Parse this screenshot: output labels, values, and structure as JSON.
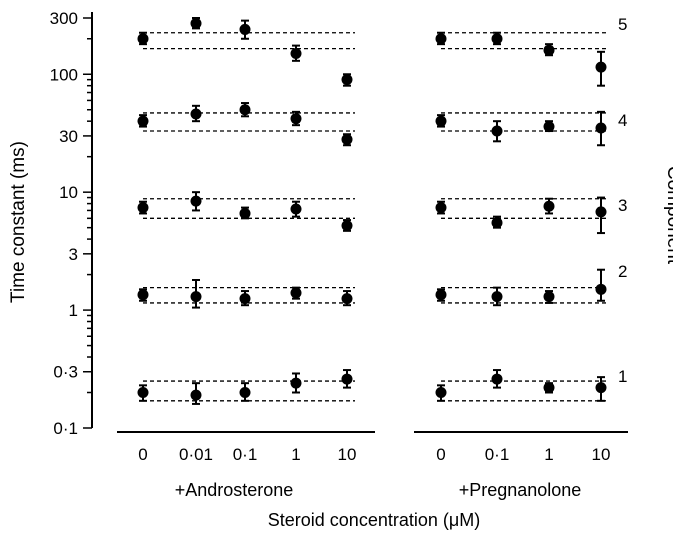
{
  "chart_data": {
    "type": "scatter",
    "ylabel": "Time constant (ms)",
    "xlabel": "Steroid concentration (μM)",
    "y_scale": "log",
    "ylim": [
      0.1,
      300
    ],
    "y_ticks": [
      {
        "value": 0.1,
        "label": "0·1"
      },
      {
        "value": 0.3,
        "label": "0·3"
      },
      {
        "value": 1,
        "label": "1"
      },
      {
        "value": 3,
        "label": "3"
      },
      {
        "value": 10,
        "label": "10"
      },
      {
        "value": 30,
        "label": "30"
      },
      {
        "value": 100,
        "label": "100"
      },
      {
        "value": 300,
        "label": "300"
      }
    ],
    "component_axis_label": "Component",
    "grid": false,
    "panels": [
      {
        "name": "+Androsterone",
        "categories": [
          "0",
          "0·01",
          "0·1",
          "1",
          "10"
        ],
        "components": [
          {
            "label": "1",
            "band": [
              0.17,
              0.25
            ],
            "points": [
              {
                "y": 0.2,
                "lo": 0.17,
                "hi": 0.23
              },
              {
                "y": 0.19,
                "lo": 0.16,
                "hi": 0.24
              },
              {
                "y": 0.2,
                "lo": 0.17,
                "hi": 0.24
              },
              {
                "y": 0.24,
                "lo": 0.2,
                "hi": 0.29
              },
              {
                "y": 0.26,
                "lo": 0.22,
                "hi": 0.31
              }
            ]
          },
          {
            "label": "2",
            "band": [
              1.15,
              1.55
            ],
            "points": [
              {
                "y": 1.35,
                "lo": 1.2,
                "hi": 1.5
              },
              {
                "y": 1.3,
                "lo": 1.05,
                "hi": 1.8
              },
              {
                "y": 1.25,
                "lo": 1.1,
                "hi": 1.45
              },
              {
                "y": 1.4,
                "lo": 1.25,
                "hi": 1.55
              },
              {
                "y": 1.25,
                "lo": 1.1,
                "hi": 1.45
              }
            ]
          },
          {
            "label": "3",
            "band": [
              6,
              8.8
            ],
            "points": [
              {
                "y": 7.4,
                "lo": 6.6,
                "hi": 8.3
              },
              {
                "y": 8.4,
                "lo": 7,
                "hi": 10
              },
              {
                "y": 6.6,
                "lo": 6,
                "hi": 7.4
              },
              {
                "y": 7.2,
                "lo": 6.2,
                "hi": 8.3
              },
              {
                "y": 5.2,
                "lo": 4.7,
                "hi": 5.8
              }
            ]
          },
          {
            "label": "4",
            "band": [
              33,
              47
            ],
            "points": [
              {
                "y": 40,
                "lo": 36,
                "hi": 45
              },
              {
                "y": 46,
                "lo": 40,
                "hi": 54
              },
              {
                "y": 50,
                "lo": 44,
                "hi": 57
              },
              {
                "y": 42,
                "lo": 37,
                "hi": 48
              },
              {
                "y": 28,
                "lo": 25,
                "hi": 31
              }
            ]
          },
          {
            "label": "5",
            "band": [
              165,
              225
            ],
            "points": [
              {
                "y": 200,
                "lo": 180,
                "hi": 225
              },
              {
                "y": 270,
                "lo": 245,
                "hi": 300
              },
              {
                "y": 240,
                "lo": 200,
                "hi": 285
              },
              {
                "y": 150,
                "lo": 130,
                "hi": 175
              },
              {
                "y": 90,
                "lo": 80,
                "hi": 100
              }
            ]
          }
        ]
      },
      {
        "name": "+Pregnanolone",
        "categories": [
          "0",
          "0·1",
          "1",
          "10"
        ],
        "components": [
          {
            "label": "1",
            "band": [
              0.17,
              0.25
            ],
            "points": [
              {
                "y": 0.2,
                "lo": 0.17,
                "hi": 0.23
              },
              {
                "y": 0.26,
                "lo": 0.22,
                "hi": 0.31
              },
              {
                "y": 0.22,
                "lo": 0.2,
                "hi": 0.24
              },
              {
                "y": 0.22,
                "lo": 0.17,
                "hi": 0.27
              }
            ]
          },
          {
            "label": "2",
            "band": [
              1.15,
              1.55
            ],
            "points": [
              {
                "y": 1.35,
                "lo": 1.2,
                "hi": 1.5
              },
              {
                "y": 1.3,
                "lo": 1.1,
                "hi": 1.55
              },
              {
                "y": 1.3,
                "lo": 1.15,
                "hi": 1.45
              },
              {
                "y": 1.5,
                "lo": 1.2,
                "hi": 2.2
              }
            ]
          },
          {
            "label": "3",
            "band": [
              6,
              8.8
            ],
            "points": [
              {
                "y": 7.4,
                "lo": 6.6,
                "hi": 8.3
              },
              {
                "y": 5.5,
                "lo": 5,
                "hi": 6.2
              },
              {
                "y": 7.6,
                "lo": 6.6,
                "hi": 8.8
              },
              {
                "y": 6.8,
                "lo": 4.5,
                "hi": 9
              }
            ]
          },
          {
            "label": "4",
            "band": [
              33,
              47
            ],
            "points": [
              {
                "y": 40,
                "lo": 36,
                "hi": 45
              },
              {
                "y": 33,
                "lo": 27,
                "hi": 40
              },
              {
                "y": 36,
                "lo": 33,
                "hi": 40
              },
              {
                "y": 35,
                "lo": 25,
                "hi": 48
              }
            ]
          },
          {
            "label": "5",
            "band": [
              165,
              225
            ],
            "points": [
              {
                "y": 200,
                "lo": 180,
                "hi": 225
              },
              {
                "y": 200,
                "lo": 180,
                "hi": 225
              },
              {
                "y": 160,
                "lo": 145,
                "hi": 180
              },
              {
                "y": 115,
                "lo": 80,
                "hi": 155
              }
            ]
          }
        ]
      }
    ]
  }
}
